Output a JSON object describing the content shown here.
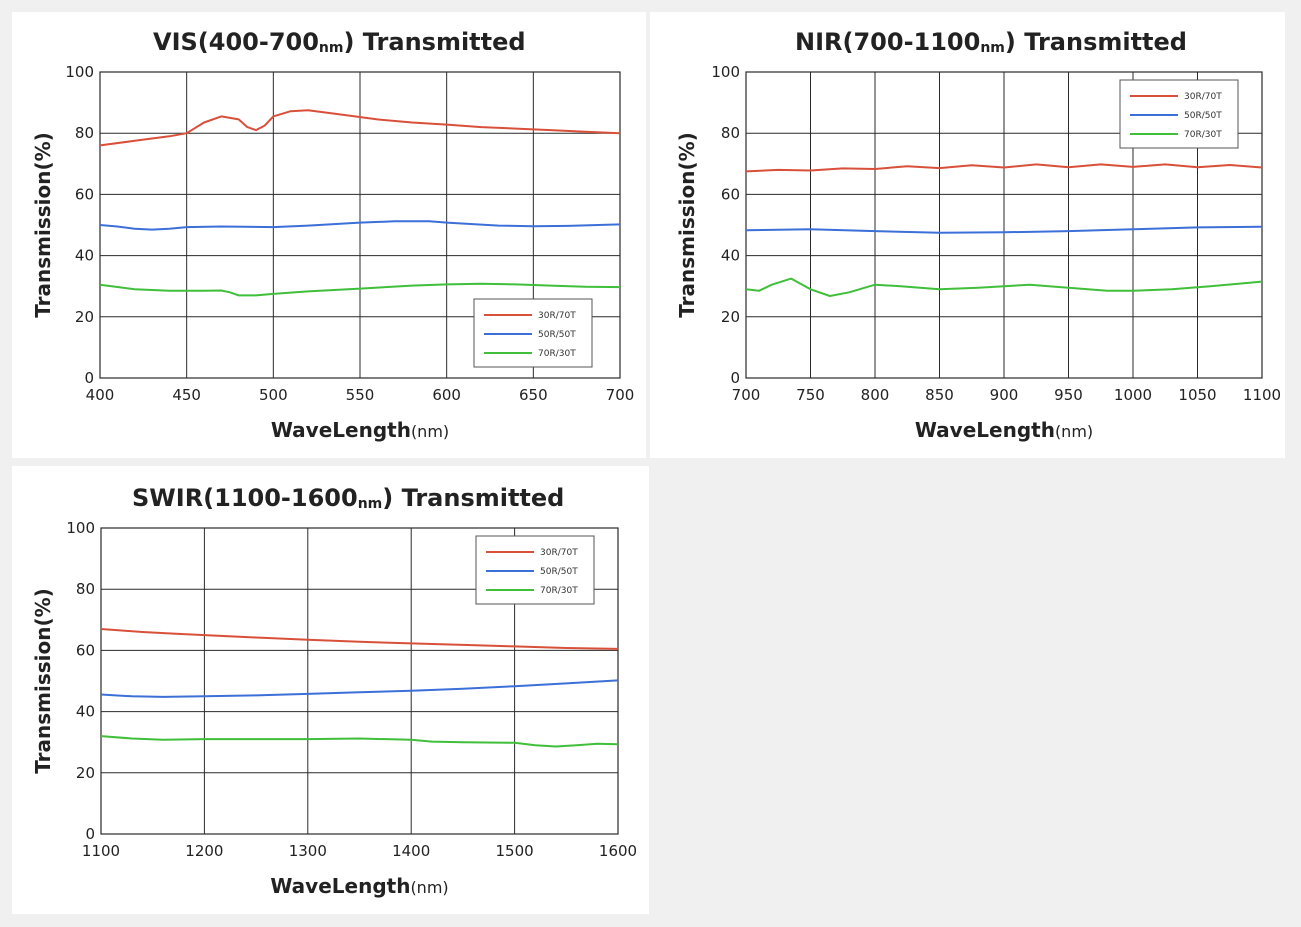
{
  "colors": {
    "red": "#d9503a",
    "blue": "#3c6fd8",
    "green": "#3fbf3a"
  },
  "chart_data": [
    {
      "type": "line",
      "title": "VIS(400-700",
      "title_unit": "nm",
      "title_end": ")  Transmitted",
      "xlabel": "WaveLength",
      "xlabel_unit": "(nm)",
      "ylabel": "Transmission(%)",
      "xlim": [
        400,
        700
      ],
      "ylim": [
        0,
        100
      ],
      "xticks": [
        400,
        450,
        500,
        550,
        600,
        650,
        700
      ],
      "yticks": [
        0,
        20,
        40,
        60,
        80,
        100
      ],
      "legend_position": "bottom-right",
      "series": [
        {
          "name": "30R/70T",
          "color": "red",
          "x": [
            400,
            420,
            440,
            450,
            460,
            470,
            480,
            485,
            490,
            495,
            500,
            510,
            520,
            540,
            560,
            580,
            600,
            620,
            640,
            660,
            680,
            700
          ],
          "y": [
            76,
            77.5,
            79,
            80,
            83.5,
            85.5,
            84.5,
            82,
            81,
            82.5,
            85.5,
            87.2,
            87.5,
            86,
            84.5,
            83.5,
            82.8,
            82,
            81.5,
            81,
            80.5,
            80
          ]
        },
        {
          "name": "50R/50T",
          "color": "blue",
          "x": [
            400,
            410,
            420,
            430,
            440,
            450,
            470,
            500,
            520,
            550,
            570,
            590,
            600,
            630,
            650,
            670,
            700
          ],
          "y": [
            50,
            49.5,
            48.8,
            48.5,
            48.8,
            49.3,
            49.5,
            49.3,
            49.8,
            50.8,
            51.2,
            51.2,
            50.8,
            49.8,
            49.6,
            49.7,
            50.2
          ]
        },
        {
          "name": "70R/30T",
          "color": "green",
          "x": [
            400,
            420,
            440,
            460,
            470,
            475,
            480,
            490,
            500,
            520,
            550,
            580,
            600,
            620,
            640,
            660,
            680,
            700
          ],
          "y": [
            30.5,
            29,
            28.5,
            28.5,
            28.6,
            28,
            27,
            27,
            27.5,
            28.3,
            29.2,
            30.2,
            30.6,
            30.8,
            30.6,
            30.2,
            29.8,
            29.7
          ]
        }
      ]
    },
    {
      "type": "line",
      "title": "NIR(700-1100",
      "title_unit": "nm",
      "title_end": ")  Transmitted",
      "xlabel": "WaveLength",
      "xlabel_unit": "(nm)",
      "ylabel": "Transmission(%)",
      "xlim": [
        700,
        1100
      ],
      "ylim": [
        0,
        100
      ],
      "xticks": [
        700,
        750,
        800,
        850,
        900,
        950,
        1000,
        1050,
        1100
      ],
      "yticks": [
        0,
        20,
        40,
        60,
        80,
        100
      ],
      "legend_position": "top-right",
      "series": [
        {
          "name": "30R/70T",
          "color": "red",
          "x": [
            700,
            725,
            750,
            775,
            800,
            825,
            850,
            875,
            900,
            925,
            950,
            975,
            1000,
            1025,
            1050,
            1075,
            1100
          ],
          "y": [
            67.5,
            68,
            67.8,
            68.5,
            68.3,
            69.2,
            68.6,
            69.5,
            68.8,
            69.8,
            68.9,
            69.8,
            69,
            69.8,
            68.9,
            69.6,
            68.8
          ]
        },
        {
          "name": "50R/50T",
          "color": "blue",
          "x": [
            700,
            750,
            800,
            850,
            900,
            950,
            1000,
            1050,
            1100
          ],
          "y": [
            48.3,
            48.6,
            48,
            47.5,
            47.6,
            48,
            48.6,
            49.2,
            49.4
          ]
        },
        {
          "name": "70R/30T",
          "color": "green",
          "x": [
            700,
            710,
            720,
            735,
            750,
            765,
            780,
            800,
            820,
            850,
            880,
            920,
            950,
            980,
            1000,
            1030,
            1060,
            1100
          ],
          "y": [
            29,
            28.5,
            30.5,
            32.5,
            29,
            26.8,
            28,
            30.5,
            30,
            29,
            29.5,
            30.5,
            29.5,
            28.5,
            28.5,
            29,
            30,
            31.5
          ]
        }
      ]
    },
    {
      "type": "line",
      "title": "SWIR(1100-1600",
      "title_unit": "nm",
      "title_end": ")  Transmitted",
      "xlabel": "WaveLength",
      "xlabel_unit": "(nm)",
      "ylabel": "Transmission(%)",
      "xlim": [
        1100,
        1600
      ],
      "ylim": [
        0,
        100
      ],
      "xticks": [
        1100,
        1200,
        1300,
        1400,
        1500,
        1600
      ],
      "yticks": [
        0,
        20,
        40,
        60,
        80,
        100
      ],
      "legend_position": "top-right",
      "series": [
        {
          "name": "30R/70T",
          "color": "red",
          "x": [
            1100,
            1120,
            1140,
            1170,
            1200,
            1250,
            1300,
            1350,
            1400,
            1450,
            1500,
            1550,
            1600
          ],
          "y": [
            67,
            66.5,
            66,
            65.5,
            65,
            64.2,
            63.5,
            62.8,
            62.3,
            61.8,
            61.3,
            60.8,
            60.5
          ]
        },
        {
          "name": "50R/50T",
          "color": "blue",
          "x": [
            1100,
            1130,
            1160,
            1200,
            1250,
            1300,
            1350,
            1400,
            1450,
            1500,
            1550,
            1600
          ],
          "y": [
            45.6,
            45,
            44.8,
            45,
            45.3,
            45.8,
            46.3,
            46.8,
            47.5,
            48.3,
            49.2,
            50.2
          ]
        },
        {
          "name": "70R/30T",
          "color": "green",
          "x": [
            1100,
            1130,
            1160,
            1200,
            1250,
            1300,
            1350,
            1400,
            1420,
            1450,
            1500,
            1520,
            1540,
            1560,
            1580,
            1600
          ],
          "y": [
            32,
            31.2,
            30.8,
            31,
            31,
            31,
            31.2,
            30.8,
            30.2,
            30,
            29.8,
            29,
            28.6,
            29,
            29.5,
            29.3
          ]
        }
      ]
    }
  ]
}
